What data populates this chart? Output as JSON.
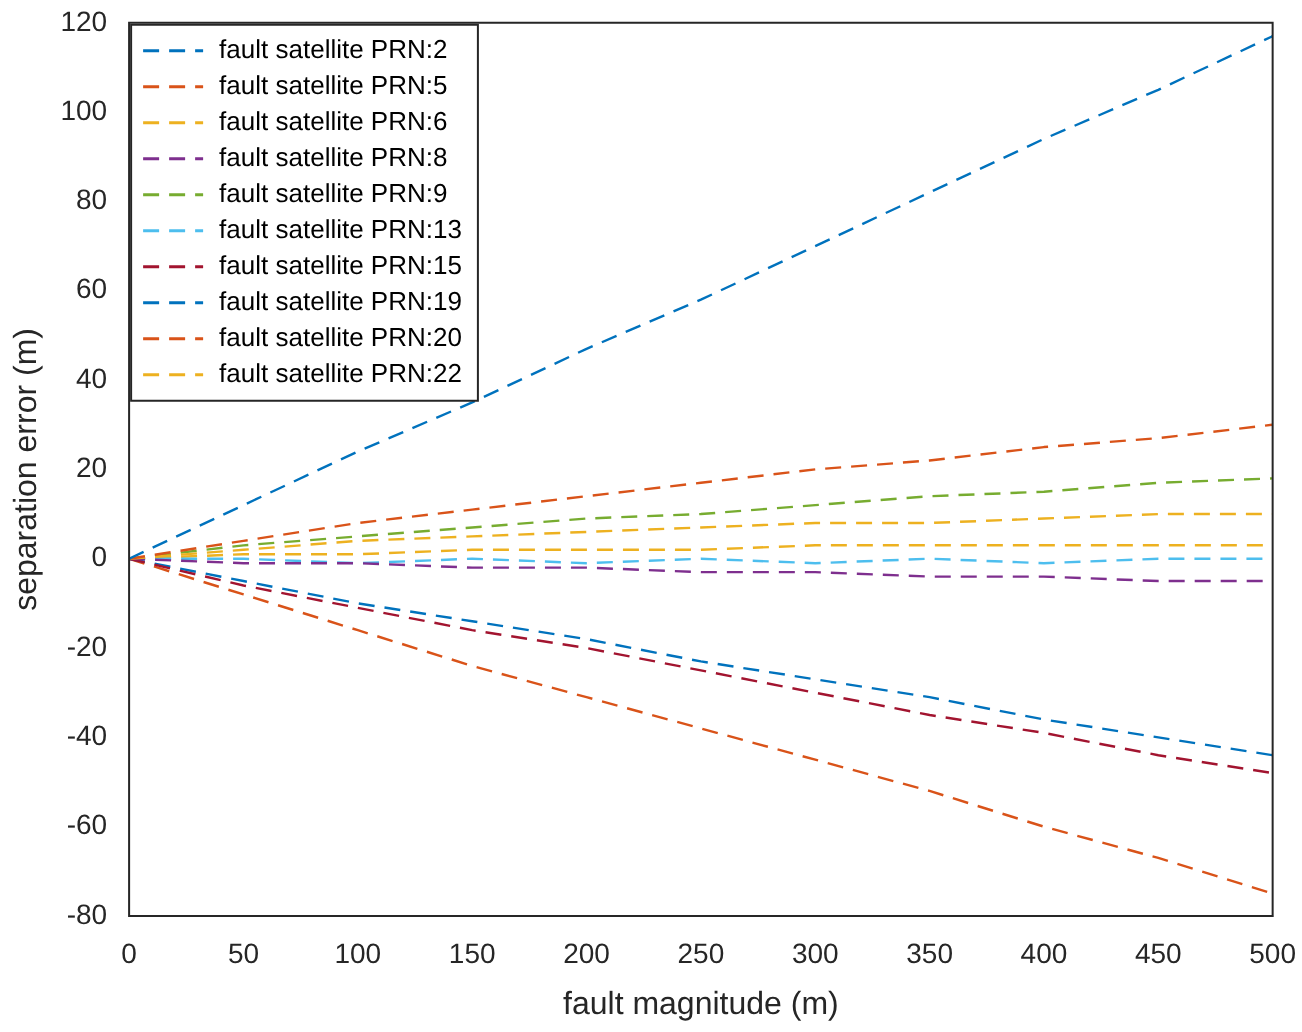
{
  "chart_data": {
    "type": "line",
    "xlabel": "fault magnitude (m)",
    "ylabel": "separation error (m)",
    "x": [
      0,
      50,
      100,
      150,
      200,
      250,
      300,
      350,
      400,
      450,
      500
    ],
    "xlim": [
      0,
      500
    ],
    "xticks": [
      0,
      50,
      100,
      150,
      200,
      250,
      300,
      350,
      400,
      450,
      500
    ],
    "ylim": [
      -80,
      120
    ],
    "yticks": [
      -80,
      -60,
      -40,
      -20,
      0,
      20,
      40,
      60,
      80,
      100,
      120
    ],
    "grid": false,
    "legend": "top left",
    "line_style": "dashed",
    "marker": "none",
    "series": [
      {
        "name": "fault satellite PRN:2",
        "color": "#0072bd",
        "values": [
          0,
          12,
          24,
          35,
          47,
          58,
          70,
          82,
          94,
          105,
          117
        ]
      },
      {
        "name": "fault satellite PRN:5",
        "color": "#d95319",
        "values": [
          0,
          4,
          8,
          11,
          14,
          17,
          20,
          22,
          25,
          27,
          30
        ]
      },
      {
        "name": "fault satellite PRN:6",
        "color": "#edb120",
        "values": [
          0,
          2,
          4,
          5,
          6,
          7,
          8,
          8,
          9,
          10,
          10
        ]
      },
      {
        "name": "fault satellite PRN:8",
        "color": "#7e2f8e",
        "values": [
          0,
          -1,
          -1,
          -2,
          -2,
          -3,
          -3,
          -4,
          -4,
          -5,
          -5
        ]
      },
      {
        "name": "fault satellite PRN:9",
        "color": "#77ac30",
        "values": [
          0,
          3,
          5,
          7,
          9,
          10,
          12,
          14,
          15,
          17,
          18
        ]
      },
      {
        "name": "fault satellite PRN:13",
        "color": "#4dbeee",
        "values": [
          0,
          0,
          -1,
          0,
          -1,
          0,
          -1,
          0,
          -1,
          0,
          0
        ]
      },
      {
        "name": "fault satellite PRN:15",
        "color": "#a2142f",
        "values": [
          0,
          -6,
          -11,
          -16,
          -20,
          -25,
          -30,
          -35,
          -39,
          -44,
          -48
        ]
      },
      {
        "name": "fault satellite PRN:19",
        "color": "#0072bd",
        "values": [
          0,
          -5,
          -10,
          -14,
          -18,
          -23,
          -27,
          -31,
          -36,
          -40,
          -44
        ]
      },
      {
        "name": "fault satellite PRN:20",
        "color": "#d95319",
        "values": [
          0,
          -8,
          -16,
          -24,
          -31,
          -38,
          -45,
          -52,
          -60,
          -67,
          -75
        ]
      },
      {
        "name": "fault satellite PRN:22",
        "color": "#edb120",
        "values": [
          0,
          1,
          1,
          2,
          2,
          2,
          3,
          3,
          3,
          3,
          3
        ]
      }
    ]
  }
}
